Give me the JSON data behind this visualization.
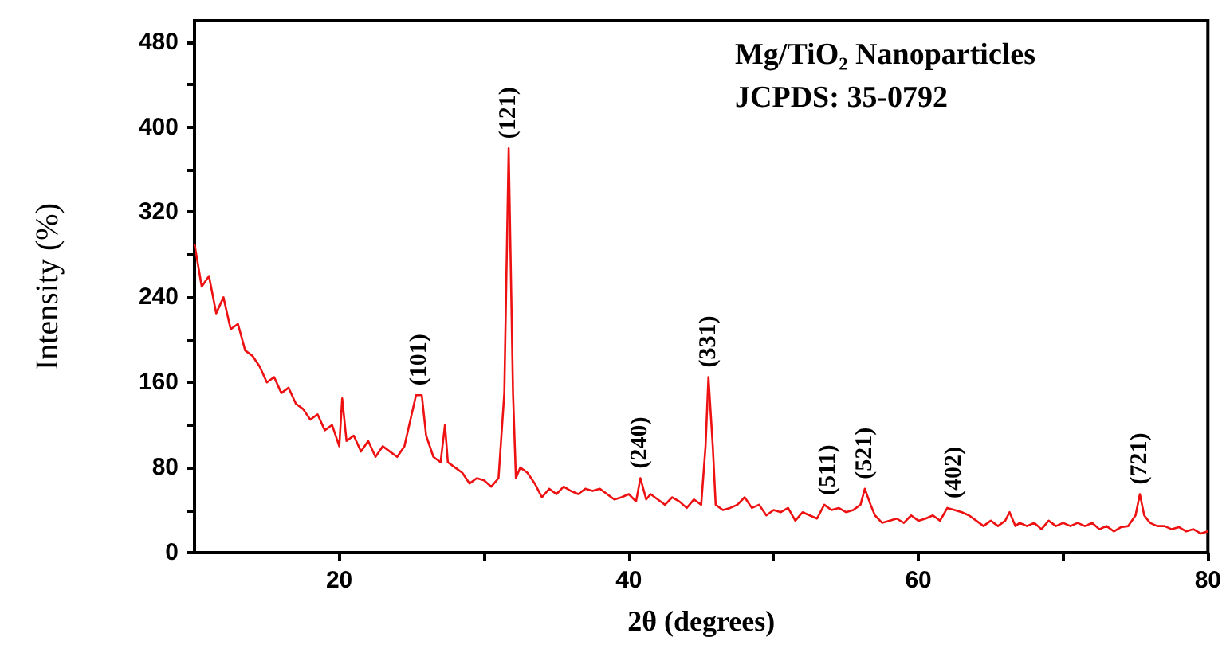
{
  "chart_data": {
    "type": "line",
    "title": "Mg/TiO₂ Nanoparticles",
    "subtitle": "JCPDS: 35-0792",
    "xlabel": "2θ (degrees)",
    "ylabel": "Intensity (%)",
    "xlim": [
      10,
      80
    ],
    "xticks": [
      20,
      {
        "value": 30,
        "label": null
      },
      40,
      {
        "value": 50,
        "label": null
      },
      60,
      {
        "value": 70,
        "label": null
      },
      80
    ],
    "ylim": [
      0,
      500
    ],
    "yticks": [
      0,
      {
        "value": 40,
        "label": null
      },
      80,
      {
        "value": 120,
        "label": null
      },
      160,
      {
        "value": 200,
        "label": null
      },
      240,
      {
        "value": 280,
        "label": null
      },
      320,
      {
        "value": 360,
        "label": null
      },
      400,
      {
        "value": 440,
        "label": null
      },
      480
    ],
    "marker": "none",
    "line_style": "solid",
    "series": [
      {
        "color": "#ee1111",
        "x": [
          10,
          10.5,
          11,
          11.5,
          12,
          12.5,
          13,
          13.5,
          14,
          14.5,
          15,
          15.5,
          16,
          16.5,
          17,
          17.5,
          18,
          18.5,
          19,
          19.5,
          20,
          20.2,
          20.5,
          21,
          21.5,
          22,
          22.5,
          23,
          23.5,
          24,
          24.5,
          25,
          25.3,
          25.7,
          26,
          26.5,
          27,
          27.3,
          27.5,
          28,
          28.5,
          29,
          29.5,
          30,
          30.5,
          31,
          31.4,
          31.7,
          32,
          32.2,
          32.5,
          33,
          33.5,
          34,
          34.5,
          35,
          35.5,
          36,
          36.5,
          37,
          37.5,
          38,
          38.5,
          39,
          39.5,
          40,
          40.5,
          40.8,
          41.2,
          41.5,
          42,
          42.5,
          43,
          43.5,
          44,
          44.5,
          45,
          45.3,
          45.5,
          45.8,
          46,
          46.5,
          47,
          47.5,
          48,
          48.5,
          49,
          49.5,
          50,
          50.5,
          51,
          51.5,
          52,
          52.5,
          53,
          53.5,
          54,
          54.5,
          55,
          55.5,
          56,
          56.3,
          56.7,
          57,
          57.5,
          58,
          58.5,
          59,
          59.5,
          60,
          60.5,
          61,
          61.5,
          62,
          62.5,
          63,
          63.5,
          64,
          64.5,
          65,
          65.5,
          66,
          66.3,
          66.7,
          67,
          67.5,
          68,
          68.5,
          69,
          69.5,
          70,
          70.5,
          71,
          71.5,
          72,
          72.5,
          73,
          73.5,
          74,
          74.5,
          75,
          75.3,
          75.6,
          76,
          76.5,
          77,
          77.5,
          78,
          78.5,
          79,
          79.5,
          80
        ],
        "values": [
          290,
          250,
          260,
          225,
          240,
          210,
          215,
          190,
          185,
          175,
          160,
          165,
          150,
          155,
          140,
          135,
          125,
          130,
          115,
          120,
          100,
          145,
          105,
          110,
          95,
          105,
          90,
          100,
          95,
          90,
          100,
          130,
          148,
          148,
          110,
          90,
          85,
          120,
          85,
          80,
          75,
          65,
          70,
          68,
          62,
          70,
          150,
          380,
          150,
          70,
          80,
          75,
          65,
          52,
          60,
          55,
          62,
          58,
          55,
          60,
          58,
          60,
          55,
          50,
          52,
          55,
          48,
          70,
          50,
          55,
          50,
          45,
          52,
          48,
          42,
          50,
          45,
          100,
          165,
          100,
          45,
          40,
          42,
          45,
          52,
          42,
          45,
          35,
          40,
          38,
          42,
          30,
          38,
          35,
          32,
          45,
          40,
          42,
          38,
          40,
          45,
          60,
          45,
          35,
          28,
          30,
          32,
          28,
          35,
          30,
          32,
          35,
          30,
          42,
          40,
          38,
          35,
          30,
          25,
          30,
          25,
          30,
          38,
          25,
          28,
          25,
          28,
          22,
          30,
          25,
          28,
          25,
          28,
          25,
          28,
          22,
          25,
          20,
          24,
          25,
          35,
          55,
          35,
          28,
          25,
          25,
          22,
          24,
          20,
          22,
          18,
          20
        ]
      }
    ],
    "annotations": [
      {
        "text": "(101)",
        "x": 25.5,
        "y": 148
      },
      {
        "text": "(121)",
        "x": 31.7,
        "y": 380
      },
      {
        "text": "(240)",
        "x": 40.8,
        "y": 70
      },
      {
        "text": "(331)",
        "x": 45.5,
        "y": 165
      },
      {
        "text": "(511)",
        "x": 53.8,
        "y": 45
      },
      {
        "text": "(521)",
        "x": 56.3,
        "y": 60
      },
      {
        "text": "(402)",
        "x": 62.5,
        "y": 42
      },
      {
        "text": "(721)",
        "x": 75.3,
        "y": 55
      }
    ]
  }
}
